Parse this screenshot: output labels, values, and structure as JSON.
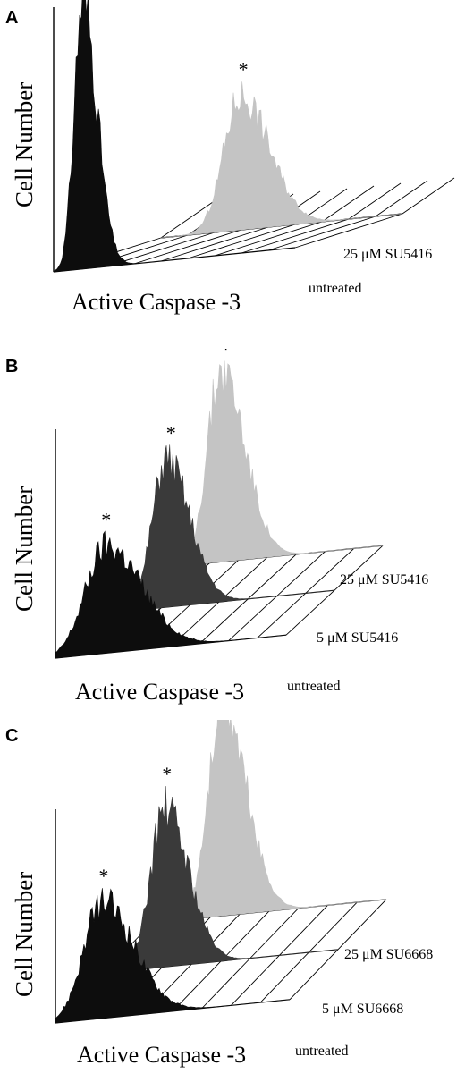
{
  "panels": [
    {
      "letter": "A",
      "ylabel": "Cell Number",
      "xlabel": "Active Caspase -3",
      "conditions": [
        "untreated",
        "25 μM SU5416"
      ],
      "peak_markers": [
        "",
        "*"
      ]
    },
    {
      "letter": "B",
      "ylabel": "Cell Number",
      "xlabel": "Active Caspase -3",
      "conditions": [
        "untreated",
        "5 μM SU5416",
        "25 μM SU5416"
      ],
      "peak_markers": [
        "*",
        "*",
        "*"
      ]
    },
    {
      "letter": "C",
      "ylabel": "Cell Number",
      "xlabel": "Active Caspase -3",
      "conditions": [
        "untreated",
        "5 μM SU6668",
        "25 μM SU6668"
      ],
      "peak_markers": [
        "*",
        "*",
        "*"
      ]
    }
  ],
  "colors": {
    "untreated": "#0d0d0d",
    "low_dose": "#3a3a3a",
    "high_dose": "#c4c4c4",
    "axis": "#000000"
  },
  "chart_data": [
    {
      "type": "area",
      "panel": "A",
      "xlabel": "Active Caspase -3",
      "ylabel": "Cell Number",
      "series": [
        {
          "name": "untreated",
          "peak_position": 0.12,
          "relative_peak_height": 1.0,
          "spread": 0.035
        },
        {
          "name": "25 μM SU5416",
          "peak_position": 0.33,
          "relative_peak_height": 0.5,
          "spread": 0.07
        }
      ]
    },
    {
      "type": "area",
      "panel": "B",
      "xlabel": "Active Caspase -3",
      "ylabel": "Cell Number",
      "series": [
        {
          "name": "untreated",
          "peak_position": 0.22,
          "relative_peak_height": 0.5,
          "spread": 0.09
        },
        {
          "name": "5 μM SU5416",
          "peak_position": 0.27,
          "relative_peak_height": 0.68,
          "spread": 0.06
        },
        {
          "name": "25 μM SU5416",
          "peak_position": 0.3,
          "relative_peak_height": 0.9,
          "spread": 0.06
        }
      ]
    },
    {
      "type": "area",
      "panel": "C",
      "xlabel": "Active Caspase -3",
      "ylabel": "Cell Number",
      "series": [
        {
          "name": "untreated",
          "peak_position": 0.2,
          "relative_peak_height": 0.55,
          "spread": 0.08
        },
        {
          "name": "5 μM SU6668",
          "peak_position": 0.26,
          "relative_peak_height": 0.75,
          "spread": 0.06
        },
        {
          "name": "25 μM SU6668",
          "peak_position": 0.3,
          "relative_peak_height": 1.0,
          "spread": 0.06
        }
      ]
    }
  ]
}
